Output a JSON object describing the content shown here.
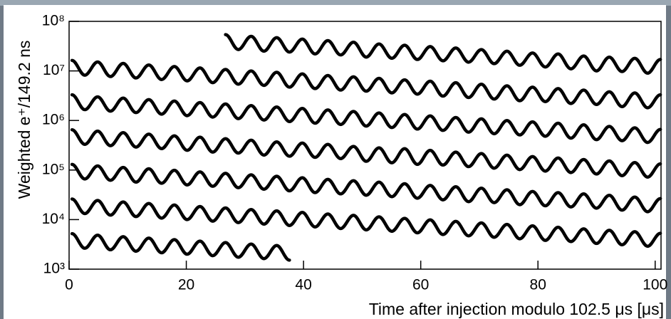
{
  "chart_data": {
    "type": "line",
    "y_label": "Weighted e⁺/149.2 ns",
    "x_label": "Time after injection modulo 102.5 μs [μs]",
    "color": "#000000",
    "log_y": true,
    "xlim": [
      0,
      101
    ],
    "ylim": [
      1000,
      100000000
    ],
    "xticks": [
      0,
      20,
      40,
      60,
      80,
      100
    ],
    "yticks": [
      {
        "value": 1000,
        "label": "10³"
      },
      {
        "value": 10000,
        "label": "10⁴"
      },
      {
        "value": 100000,
        "label": "10⁵"
      },
      {
        "value": 1000000,
        "label": "10⁶"
      },
      {
        "value": 10000000,
        "label": "10⁷"
      },
      {
        "value": 100000000,
        "label": "10⁸"
      }
    ],
    "x": [
      0.5,
      2.68,
      4.87,
      7.05,
      9.23,
      11.41,
      13.6,
      15.78,
      17.96,
      20.14,
      22.33,
      24.51,
      26.69,
      28.87,
      31.06,
      33.24,
      35.42,
      37.6,
      39.79,
      41.97,
      44.15,
      46.33,
      48.52,
      50.7,
      52.88,
      55.06,
      57.25,
      59.43,
      61.61,
      63.79,
      65.98,
      68.16,
      70.34,
      72.52,
      74.71,
      76.89,
      79.07,
      81.25,
      83.44,
      85.62,
      87.8,
      89.98,
      92.17,
      94.35,
      96.52,
      98.71,
      100.89
    ],
    "series": [
      {
        "values": [
          null,
          null,
          null,
          null,
          null,
          null,
          null,
          null,
          null,
          null,
          null,
          null,
          54000000.0,
          27000000.0,
          50000000.0,
          25000000.0,
          47000000.0,
          24000000.0,
          44000000.0,
          22000000.0,
          41000000.0,
          21000000.0,
          38000000.0,
          19000000.0,
          35000000.0,
          18000000.0,
          33000000.0,
          17000000.0,
          31000000.0,
          16000000.0,
          29000000.0,
          15000000.0,
          27000000.0,
          14000000.0,
          25000000.0,
          13000000.0,
          23000000.0,
          12000000.0,
          22000000.0,
          11000000.0,
          20000000.0,
          10000000.0,
          19000000.0,
          9700000.0,
          18000000.0,
          9000000.0,
          17000000.0
        ]
      },
      {
        "values": [
          16300000.0,
          8200000.0,
          15200000.0,
          7700000.0,
          14200000.0,
          7200000.0,
          13200000.0,
          6700000.0,
          12300000.0,
          6300000.0,
          11500000.0,
          5800000.0,
          10700000.0,
          5400000.0,
          10000000.0,
          5100000.0,
          9400000.0,
          4700000.0,
          8700000.0,
          4400000.0,
          8100000.0,
          4100000.0,
          7600000.0,
          3900000.0,
          7100000.0,
          3600000.0,
          6600000.0,
          3400000.0,
          6200000.0,
          3100000.0,
          5800000.0,
          2900000.0,
          5400000.0,
          2700000.0,
          5000000.0,
          2500000.0,
          4700000.0,
          2400000.0,
          4400000.0,
          2200000.0,
          4100000.0,
          2100000.0,
          3800000.0,
          1900000.0,
          3600000.0,
          1800000.0,
          3300000.0
        ]
      },
      {
        "values": [
          3300000.0,
          1650000.0,
          3000000.0,
          1540000.0,
          2830000.0,
          1440000.0,
          2640000.0,
          1340000.0,
          2470000.0,
          1250000.0,
          2300000.0,
          1170000.0,
          2150000.0,
          1090000.0,
          2000000.0,
          1020000.0,
          1870000.0,
          950000.0,
          1750000.0,
          880000.0,
          1630000.0,
          830000.0,
          1520000.0,
          770000.0,
          1420000.0,
          720000.0,
          1320000.0,
          670000.0,
          1240000.0,
          630000.0,
          1150000.0,
          580000.0,
          1080000.0,
          540000.0,
          1000000.0,
          510000.0,
          940000.0,
          480000.0,
          880000.0,
          440000.0,
          820000.0,
          410000.0,
          760000.0,
          390000.0,
          710000.0,
          360000.0,
          660000.0
        ]
      },
      {
        "values": [
          650000.0,
          330000.0,
          610000.0,
          310000.0,
          570000.0,
          290000.0,
          530000.0,
          270000.0,
          490000.0,
          250000.0,
          460000.0,
          230000.0,
          430000.0,
          220000.0,
          400000.0,
          200000.0,
          370000.0,
          190000.0,
          350000.0,
          180000.0,
          330000.0,
          170000.0,
          300000.0,
          150000.0,
          280000.0,
          140000.0,
          270000.0,
          130000.0,
          250000.0,
          126000.0,
          230000.0,
          117000.0,
          215000.0,
          109000.0,
          200000.0,
          102000.0,
          187000.0,
          95000.0,
          175000.0,
          89000.0,
          163000.0,
          83000.0,
          153000.0,
          77000.0,
          142000.0,
          72000.0,
          133000.0
        ]
      },
      {
        "values": [
          130000.0,
          66000.0,
          121000.0,
          62000.0,
          113000.0,
          57000.0,
          106000.0,
          54000.0,
          99000.0,
          50000.0,
          92000.0,
          47000.0,
          86000.0,
          44000.0,
          80000.0,
          41000.0,
          75000.0,
          38000.0,
          70000.0,
          35000.0,
          65000.0,
          33000.0,
          61000.0,
          31000.0,
          57000.0,
          29000.0,
          53000.0,
          27000.0,
          49000.0,
          25000.0,
          46000.0,
          23000.0,
          43000.0,
          22000.0,
          40000.0,
          20000.0,
          37000.0,
          19000.0,
          35000.0,
          18000.0,
          33000.0,
          17000.0,
          31000.0,
          15500.0,
          28500.0,
          14400.0,
          26600.0
        ]
      },
      {
        "values": [
          26000.0,
          13200.0,
          24300.0,
          12300.0,
          22700.0,
          11500.0,
          21200.0,
          10700.0,
          19700.0,
          10000.0,
          18400.0,
          9300.0,
          17200.0,
          8700.0,
          16000.0,
          8100.0,
          15000.0,
          7600.0,
          14000.0,
          7100.0,
          13000.0,
          6600.0,
          12200.0,
          6200.0,
          11400.0,
          5800.0,
          10600.0,
          5400.0,
          9900.0,
          5000.0,
          9200.0,
          4700.0,
          8600.0,
          4400.0,
          8000.0,
          4100.0,
          7500.0,
          3800.0,
          7000.0,
          3600.0,
          6500.0,
          3300.0,
          6100.0,
          3100.0,
          5700.0,
          2900.0,
          5300.0
        ]
      },
      {
        "values": [
          5200.0,
          2640.0,
          4860.0,
          2460.0,
          4530.0,
          2300.0,
          4230.0,
          2140.0,
          3950.0,
          2000.0,
          3680.0,
          1870.0,
          3440.0,
          1740.0,
          3210.0,
          1630.0,
          3000.0,
          1520.0,
          null,
          null,
          null,
          null,
          null,
          null,
          null,
          null,
          null,
          null,
          null,
          null,
          null,
          null,
          null,
          null,
          null,
          null,
          null,
          null,
          null,
          null,
          null,
          null,
          null,
          null,
          null,
          null,
          null
        ]
      }
    ]
  }
}
